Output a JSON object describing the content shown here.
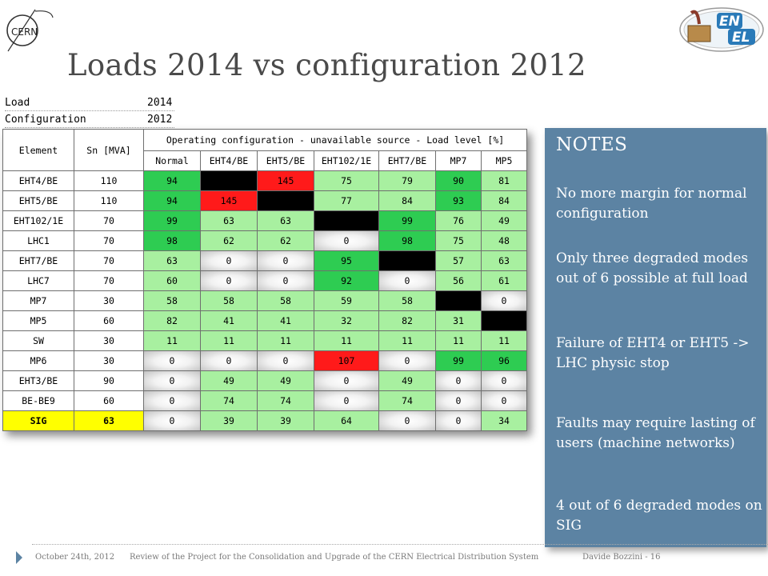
{
  "slide": {
    "title": "Loads 2014 vs configuration 2012",
    "cern_logo_text": "CERN",
    "enel_logo_text_top": "EN",
    "enel_logo_text_bottom": "EL"
  },
  "meta": {
    "rows": [
      {
        "label": "Load",
        "value": "2014"
      },
      {
        "label": "Configuration",
        "value": "2012"
      }
    ]
  },
  "table": {
    "col_element": "Element",
    "col_sn": "Sn [MVA]",
    "group_header": "Operating configuration - unavailable source - Load level [%]",
    "columns": [
      "Normal",
      "EHT4/BE",
      "EHT5/BE",
      "EHT102/1E",
      "EHT7/BE",
      "MP7",
      "MP5"
    ],
    "rows": [
      {
        "element": "EHT4/BE",
        "sn": "110",
        "cells": [
          "94",
          "",
          "145",
          "75",
          "79",
          "90",
          "81"
        ]
      },
      {
        "element": "EHT5/BE",
        "sn": "110",
        "cells": [
          "94",
          "145",
          "",
          "77",
          "84",
          "93",
          "84"
        ]
      },
      {
        "element": "EHT102/1E",
        "sn": "70",
        "cells": [
          "99",
          "63",
          "63",
          "",
          "99",
          "76",
          "49"
        ]
      },
      {
        "element": "LHC1",
        "sn": "70",
        "cells": [
          "98",
          "62",
          "62",
          "0",
          "98",
          "75",
          "48"
        ]
      },
      {
        "element": "EHT7/BE",
        "sn": "70",
        "cells": [
          "63",
          "0",
          "0",
          "95",
          "",
          "57",
          "63"
        ]
      },
      {
        "element": "LHC7",
        "sn": "70",
        "cells": [
          "60",
          "0",
          "0",
          "92",
          "0",
          "56",
          "61"
        ]
      },
      {
        "element": "MP7",
        "sn": "30",
        "cells": [
          "58",
          "58",
          "58",
          "59",
          "58",
          "",
          "0"
        ]
      },
      {
        "element": "MP5",
        "sn": "60",
        "cells": [
          "82",
          "41",
          "41",
          "32",
          "82",
          "31",
          ""
        ]
      },
      {
        "element": "SW",
        "sn": "30",
        "cells": [
          "11",
          "11",
          "11",
          "11",
          "11",
          "11",
          "11"
        ]
      },
      {
        "element": "MP6",
        "sn": "30",
        "cells": [
          "0",
          "0",
          "0",
          "107",
          "0",
          "99",
          "96"
        ]
      },
      {
        "element": "EHT3/BE",
        "sn": "90",
        "cells": [
          "0",
          "49",
          "49",
          "0",
          "49",
          "0",
          "0"
        ]
      },
      {
        "element": "BE-BE9",
        "sn": "60",
        "cells": [
          "0",
          "74",
          "74",
          "0",
          "74",
          "0",
          "0"
        ]
      },
      {
        "element": "SIG",
        "sn": "63",
        "cells": [
          "0",
          "39",
          "39",
          "64",
          "0",
          "0",
          "34"
        ]
      }
    ],
    "cell_colors": [
      [
        "green",
        "black",
        "red",
        "lgreen",
        "lgreen",
        "green",
        "lgreen"
      ],
      [
        "green",
        "red",
        "black",
        "lgreen",
        "lgreen",
        "green",
        "lgreen"
      ],
      [
        "green",
        "lgreen",
        "lgreen",
        "black",
        "green",
        "lgreen",
        "lgreen"
      ],
      [
        "green",
        "lgreen",
        "lgreen",
        "gray",
        "green",
        "lgreen",
        "lgreen"
      ],
      [
        "lgreen",
        "gray",
        "gray",
        "green",
        "black",
        "lgreen",
        "lgreen"
      ],
      [
        "lgreen",
        "gray",
        "gray",
        "green",
        "gray",
        "lgreen",
        "lgreen"
      ],
      [
        "lgreen",
        "lgreen",
        "lgreen",
        "lgreen",
        "lgreen",
        "black",
        "gray"
      ],
      [
        "lgreen",
        "lgreen",
        "lgreen",
        "lgreen",
        "lgreen",
        "lgreen",
        "black"
      ],
      [
        "lgreen",
        "lgreen",
        "lgreen",
        "lgreen",
        "lgreen",
        "lgreen",
        "lgreen"
      ],
      [
        "gray",
        "gray",
        "gray",
        "red",
        "gray",
        "green",
        "green"
      ],
      [
        "gray",
        "lgreen",
        "lgreen",
        "gray",
        "lgreen",
        "gray",
        "gray"
      ],
      [
        "gray",
        "lgreen",
        "lgreen",
        "gray",
        "lgreen",
        "gray",
        "gray"
      ],
      [
        "gray",
        "lgreen",
        "lgreen",
        "lgreen",
        "gray",
        "gray",
        "lgreen"
      ]
    ],
    "colors": {
      "green": "#2ecc52",
      "light_green": "#a8f0a0",
      "red": "#ff1a1a",
      "black": "#000000",
      "highlight": "#ffff00"
    }
  },
  "notes": {
    "heading": "NOTES",
    "items": [
      "No more margin for normal configuration",
      "Only three degraded modes out of 6 possible at full load",
      "Failure of EHT4 or EHT5 -> LHC physic stop",
      "Faults may require lasting of users (machine networks)",
      "4 out of 6 degraded modes on SIG"
    ],
    "background": "#5c83a3"
  },
  "footer": {
    "date": "October 24th, 2012",
    "project": "Review of the Project for the Consolidation and Upgrade of the  CERN Electrical Distribution System",
    "author_page": "Davide Bozzini - 16"
  }
}
